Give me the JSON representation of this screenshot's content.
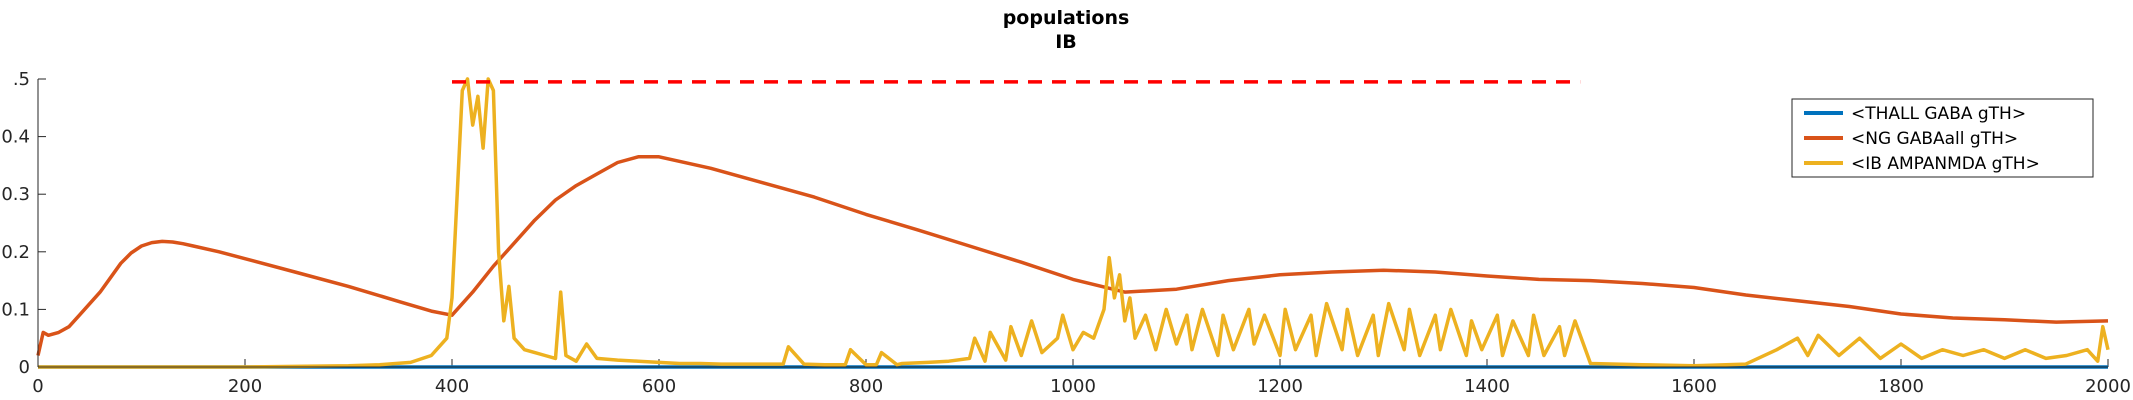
{
  "chart_data": {
    "type": "line",
    "title": "populations",
    "subtitle": "IB",
    "xlabel": "",
    "ylabel": "",
    "xlim": [
      0,
      2000
    ],
    "ylim": [
      0,
      0.5
    ],
    "x_ticks": [
      "0",
      "200",
      "400",
      "600",
      "800",
      "1000",
      "1200",
      "1400",
      "1600",
      "1800",
      "2000"
    ],
    "y_ticks": [
      ".5",
      "0.4",
      "0.3",
      "0.2",
      "0.1",
      "0"
    ],
    "legend_position": "top-right",
    "grid": false,
    "series": [
      {
        "name": "<THALL GABA gTH>",
        "color": "#0072BD",
        "x": [
          0,
          2000
        ],
        "y": [
          0,
          0
        ]
      },
      {
        "name": "<NG GABAall gTH>",
        "color": "#D95319",
        "x": [
          0,
          5,
          10,
          20,
          30,
          40,
          50,
          60,
          70,
          80,
          90,
          100,
          110,
          120,
          130,
          140,
          150,
          175,
          200,
          250,
          300,
          350,
          380,
          400,
          420,
          440,
          460,
          480,
          500,
          520,
          540,
          560,
          580,
          600,
          650,
          700,
          750,
          800,
          850,
          900,
          950,
          1000,
          1050,
          1100,
          1150,
          1200,
          1250,
          1300,
          1350,
          1400,
          1450,
          1500,
          1550,
          1600,
          1650,
          1700,
          1750,
          1800,
          1850,
          1900,
          1950,
          2000
        ],
        "y": [
          0.02,
          0.06,
          0.055,
          0.06,
          0.07,
          0.09,
          0.11,
          0.13,
          0.155,
          0.18,
          0.198,
          0.21,
          0.216,
          0.218,
          0.217,
          0.214,
          0.21,
          0.2,
          0.188,
          0.164,
          0.14,
          0.113,
          0.097,
          0.09,
          0.13,
          0.175,
          0.215,
          0.255,
          0.29,
          0.315,
          0.335,
          0.355,
          0.365,
          0.365,
          0.345,
          0.32,
          0.295,
          0.265,
          0.238,
          0.21,
          0.182,
          0.152,
          0.13,
          0.135,
          0.15,
          0.16,
          0.165,
          0.168,
          0.165,
          0.158,
          0.152,
          0.15,
          0.145,
          0.138,
          0.125,
          0.115,
          0.105,
          0.092,
          0.085,
          0.082,
          0.078,
          0.08
        ]
      },
      {
        "name": "<IB AMPANMDA gTH>",
        "color": "#EDB120",
        "x": [
          0,
          100,
          200,
          300,
          330,
          360,
          380,
          395,
          400,
          405,
          410,
          415,
          420,
          425,
          430,
          435,
          440,
          445,
          450,
          455,
          460,
          470,
          480,
          490,
          500,
          505,
          510,
          520,
          530,
          540,
          560,
          580,
          600,
          620,
          640,
          660,
          680,
          700,
          720,
          725,
          740,
          760,
          780,
          785,
          800,
          810,
          815,
          830,
          835,
          860,
          880,
          900,
          905,
          915,
          920,
          935,
          940,
          950,
          960,
          970,
          985,
          990,
          1000,
          1010,
          1020,
          1030,
          1035,
          1040,
          1045,
          1050,
          1055,
          1060,
          1070,
          1080,
          1090,
          1100,
          1110,
          1115,
          1125,
          1140,
          1145,
          1155,
          1170,
          1175,
          1185,
          1200,
          1205,
          1215,
          1230,
          1235,
          1245,
          1260,
          1265,
          1275,
          1290,
          1295,
          1305,
          1320,
          1325,
          1335,
          1350,
          1355,
          1365,
          1380,
          1385,
          1395,
          1410,
          1415,
          1425,
          1440,
          1445,
          1455,
          1470,
          1475,
          1485,
          1500,
          1550,
          1600,
          1650,
          1680,
          1700,
          1710,
          1720,
          1740,
          1760,
          1780,
          1800,
          1820,
          1840,
          1860,
          1880,
          1900,
          1920,
          1940,
          1960,
          1980,
          1990,
          1995,
          2000
        ],
        "y": [
          0,
          0,
          0,
          0.002,
          0.004,
          0.008,
          0.02,
          0.05,
          0.12,
          0.3,
          0.48,
          0.5,
          0.42,
          0.47,
          0.38,
          0.5,
          0.48,
          0.2,
          0.08,
          0.14,
          0.05,
          0.03,
          0.025,
          0.02,
          0.015,
          0.13,
          0.02,
          0.01,
          0.04,
          0.015,
          0.012,
          0.01,
          0.008,
          0.006,
          0.006,
          0.005,
          0.005,
          0.005,
          0.005,
          0.035,
          0.005,
          0.004,
          0.004,
          0.03,
          0.004,
          0.004,
          0.025,
          0.004,
          0.006,
          0.008,
          0.01,
          0.015,
          0.05,
          0.01,
          0.06,
          0.012,
          0.07,
          0.02,
          0.08,
          0.025,
          0.05,
          0.09,
          0.03,
          0.06,
          0.05,
          0.1,
          0.19,
          0.12,
          0.16,
          0.08,
          0.12,
          0.05,
          0.09,
          0.03,
          0.1,
          0.04,
          0.09,
          0.03,
          0.1,
          0.02,
          0.09,
          0.03,
          0.1,
          0.04,
          0.09,
          0.02,
          0.1,
          0.03,
          0.09,
          0.02,
          0.11,
          0.03,
          0.1,
          0.02,
          0.09,
          0.02,
          0.11,
          0.03,
          0.1,
          0.02,
          0.09,
          0.03,
          0.1,
          0.02,
          0.08,
          0.03,
          0.09,
          0.02,
          0.08,
          0.02,
          0.09,
          0.02,
          0.07,
          0.02,
          0.08,
          0.006,
          0.004,
          0.002,
          0.005,
          0.03,
          0.05,
          0.02,
          0.055,
          0.02,
          0.05,
          0.015,
          0.04,
          0.015,
          0.03,
          0.02,
          0.03,
          0.015,
          0.03,
          0.015,
          0.02,
          0.03,
          0.01,
          0.07,
          0.03
        ]
      }
    ],
    "threshold": {
      "value": 0.495,
      "x_start": 400,
      "x_end": 1490,
      "color": "#FF0000",
      "style": "dashed"
    }
  }
}
